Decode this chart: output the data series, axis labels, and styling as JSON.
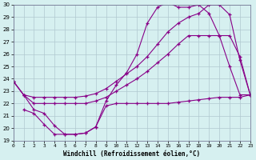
{
  "xlabel": "Windchill (Refroidissement éolien,°C)",
  "bg_color": "#d6f0f0",
  "grid_color": "#b0c8d0",
  "line_color": "#880088",
  "xlim": [
    0,
    23
  ],
  "ylim": [
    19,
    30
  ],
  "xticks": [
    0,
    1,
    2,
    3,
    4,
    5,
    6,
    7,
    8,
    9,
    10,
    11,
    12,
    13,
    14,
    15,
    16,
    17,
    18,
    19,
    20,
    21,
    22,
    23
  ],
  "yticks": [
    19,
    20,
    21,
    22,
    23,
    24,
    25,
    26,
    27,
    28,
    29,
    30
  ],
  "curve1_x": [
    0,
    1,
    2,
    3,
    4,
    5,
    6,
    7,
    8,
    9,
    10,
    11,
    12,
    13,
    14,
    15,
    16,
    17,
    18,
    19,
    20,
    21,
    22,
    23
  ],
  "curve1_y": [
    23.8,
    22.7,
    21.5,
    21.2,
    20.2,
    19.5,
    19.5,
    19.6,
    20.1,
    22.2,
    23.5,
    24.5,
    26.0,
    28.5,
    29.8,
    30.2,
    29.8,
    29.8,
    30.0,
    29.3,
    27.5,
    25.0,
    22.7,
    22.7
  ],
  "curve2_x": [
    0,
    1,
    2,
    3,
    4,
    5,
    6,
    7,
    8,
    9,
    10,
    11,
    12,
    13,
    14,
    15,
    16,
    17,
    18,
    19,
    20,
    21,
    22,
    23
  ],
  "curve2_y": [
    23.8,
    22.7,
    22.5,
    22.5,
    22.5,
    22.5,
    22.5,
    22.6,
    22.8,
    23.2,
    23.8,
    24.4,
    25.0,
    25.8,
    26.8,
    27.8,
    28.5,
    29.0,
    29.3,
    30.0,
    30.0,
    29.2,
    25.5,
    22.7
  ],
  "curve3_x": [
    0,
    1,
    2,
    3,
    4,
    5,
    6,
    7,
    8,
    9,
    10,
    11,
    12,
    13,
    14,
    15,
    16,
    17,
    18,
    19,
    20,
    21,
    22,
    23
  ],
  "curve3_y": [
    23.8,
    22.7,
    22.0,
    22.0,
    22.0,
    22.0,
    22.0,
    22.0,
    22.2,
    22.5,
    23.0,
    23.5,
    24.0,
    24.6,
    25.3,
    26.0,
    26.8,
    27.5,
    27.5,
    27.5,
    27.5,
    27.5,
    25.8,
    22.7
  ],
  "curve4_x": [
    1,
    2,
    3,
    4,
    5,
    6,
    7,
    8,
    9,
    10,
    11,
    12,
    13,
    14,
    15,
    16,
    17,
    18,
    19,
    20,
    21,
    22,
    23
  ],
  "curve4_y": [
    21.5,
    21.2,
    20.3,
    19.5,
    19.5,
    19.5,
    19.6,
    20.1,
    21.8,
    22.0,
    22.0,
    22.0,
    22.0,
    22.0,
    22.0,
    22.1,
    22.2,
    22.3,
    22.4,
    22.5,
    22.5,
    22.5,
    22.7
  ]
}
